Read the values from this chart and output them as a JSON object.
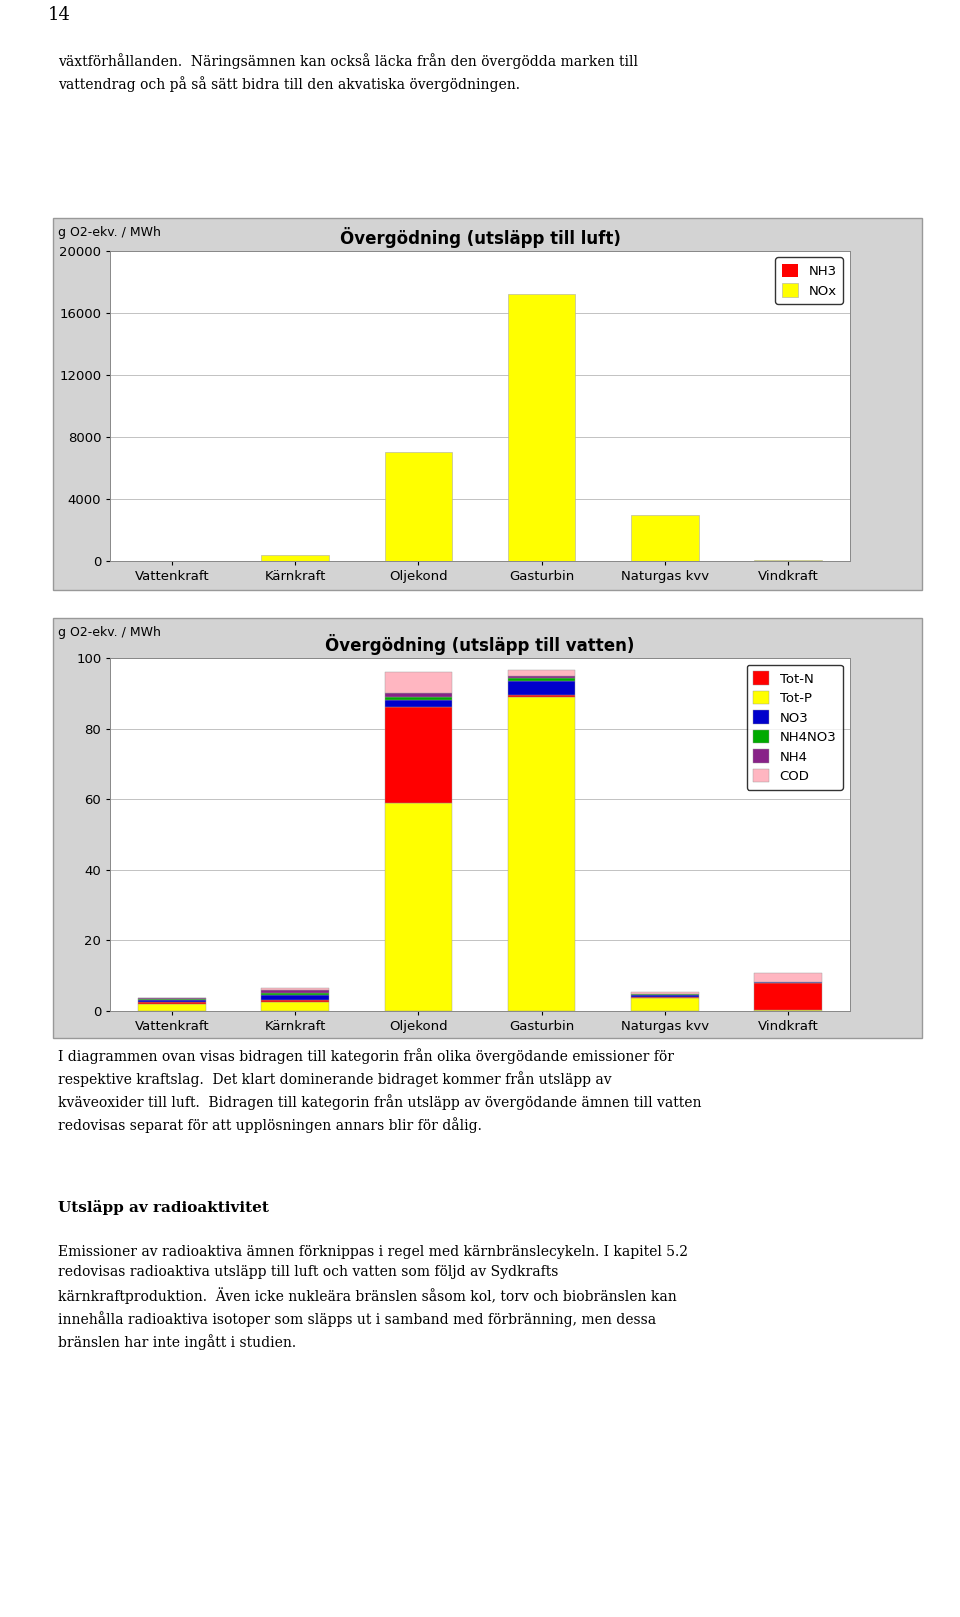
{
  "categories": [
    "Vattenkraft",
    "Kärnkraft",
    "Oljekond",
    "Gasturbin",
    "Naturgas kvv",
    "Vindkraft"
  ],
  "chart1_title": "Övergödning (utsläpp till luft)",
  "chart1_ylabel": "g O2-ekv. / MWh",
  "chart1_ylim": [
    0,
    20000
  ],
  "chart1_yticks": [
    0,
    4000,
    8000,
    12000,
    16000,
    20000
  ],
  "chart1_NH3": [
    0,
    0,
    0,
    0,
    0,
    0
  ],
  "chart1_NOx": [
    3,
    400,
    7000,
    17200,
    3000,
    100
  ],
  "chart1_NH3_color": "#FF0000",
  "chart1_NOx_color": "#FFFF00",
  "chart2_title": "Övergödning (utsläpp till vatten)",
  "chart2_ylabel": "g O2-ekv. / MWh",
  "chart2_ylim": [
    0,
    100
  ],
  "chart2_yticks": [
    0,
    20,
    40,
    60,
    80,
    100
  ],
  "chart2_TotP": [
    2.0,
    2.5,
    59.0,
    89.0,
    3.5,
    0.3
  ],
  "chart2_TotN": [
    0.5,
    0.5,
    27.0,
    0.5,
    0.3,
    7.5
  ],
  "chart2_NO3": [
    0.5,
    1.5,
    2.0,
    4.0,
    0.5,
    0.2
  ],
  "chart2_NH4NO3": [
    0.2,
    0.5,
    1.0,
    1.0,
    0.3,
    0.1
  ],
  "chart2_NH4": [
    0.3,
    0.8,
    1.0,
    0.5,
    0.2,
    0.1
  ],
  "chart2_COD": [
    0.2,
    0.5,
    6.0,
    1.5,
    0.5,
    2.5
  ],
  "chart2_TotN_color": "#FF0000",
  "chart2_TotP_color": "#FFFF00",
  "chart2_NO3_color": "#0000CC",
  "chart2_NH4NO3_color": "#00AA00",
  "chart2_NH4_color": "#882288",
  "chart2_COD_color": "#FFB6C1",
  "bg_color": "#D3D3D3",
  "plot_bg_color": "#FFFFFF"
}
